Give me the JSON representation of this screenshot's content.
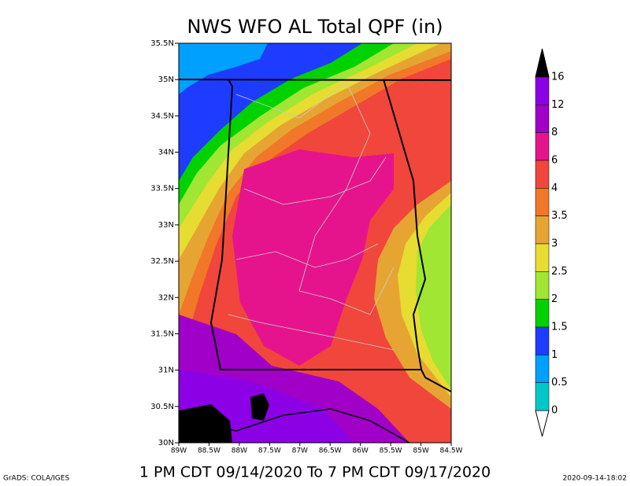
{
  "title": "NWS WFO AL Total QPF (in)",
  "lat_labels": [
    "35.5N",
    "35N",
    "34.5N",
    "34N",
    "33.5N",
    "33N",
    "32.5N",
    "32N",
    "31.5N",
    "31N",
    "30.5N",
    "30N"
  ],
  "lon_labels": [
    "89W",
    "88.5W",
    "88W",
    "87.5W",
    "87W",
    "86.5W",
    "86W",
    "85.5W",
    "85W",
    "84.5W"
  ],
  "legend": {
    "levels": [
      16,
      12,
      8,
      6,
      4,
      3.5,
      3,
      2.5,
      2,
      1.5,
      1,
      0.5,
      0
    ],
    "colors": [
      "#8c00e6",
      "#a000c8",
      "#e6148c",
      "#f0463c",
      "#f07828",
      "#e6a532",
      "#e6dc32",
      "#a0e632",
      "#00d200",
      "#1e3cff",
      "#00a0ff",
      "#00c8c8"
    ]
  },
  "footer": {
    "left": "GrADS: COLA/IGES",
    "center": "1 PM CDT 09/14/2020 To 7 PM CDT 09/17/2020",
    "right": "2020-09-14-18:02"
  }
}
